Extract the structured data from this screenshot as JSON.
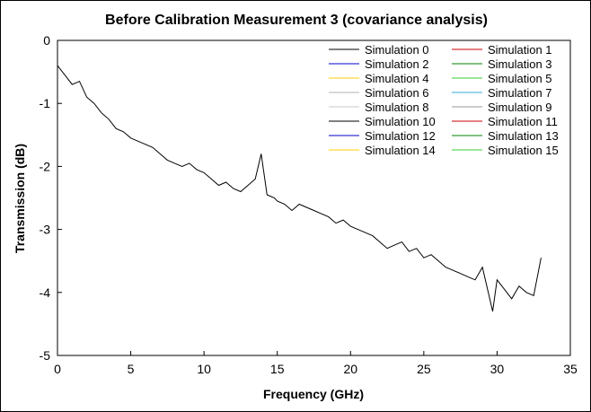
{
  "chart_data": {
    "type": "line",
    "title": "Before Calibration Measurement 3 (covariance analysis)",
    "xlabel": "Frequency (GHz)",
    "ylabel": "Transmission (dB)",
    "xlim": [
      0,
      35
    ],
    "ylim": [
      -5,
      0
    ],
    "xticks": [
      "0",
      "5",
      "10",
      "15",
      "20",
      "25",
      "30",
      "35"
    ],
    "yticks": [
      "0",
      "-1",
      "-2",
      "-3",
      "-4",
      "-5"
    ],
    "grid": false,
    "legend_position": "top-right",
    "series": [
      {
        "name": "Simulation 0",
        "color": "#000000",
        "x": [
          0,
          0.5,
          1,
          1.5,
          2,
          2.5,
          3,
          3.5,
          4,
          4.5,
          5,
          5.5,
          6,
          6.5,
          7,
          7.5,
          8,
          8.5,
          9,
          9.5,
          10,
          10.5,
          11,
          11.5,
          12,
          12.5,
          13,
          13.5,
          13.9,
          14.3,
          14.8,
          15,
          15.5,
          16,
          16.5,
          17,
          17.5,
          18,
          18.5,
          19,
          19.5,
          20,
          20.5,
          21,
          21.5,
          22,
          22.5,
          23,
          23.5,
          24,
          24.5,
          25,
          25.5,
          26,
          26.5,
          27,
          27.5,
          28,
          28.5,
          29,
          29.3,
          29.7,
          30,
          30.5,
          31,
          31.5,
          32,
          32.5,
          33
        ],
        "y": [
          -0.4,
          -0.55,
          -0.7,
          -0.65,
          -0.9,
          -1.0,
          -1.15,
          -1.25,
          -1.4,
          -1.45,
          -1.55,
          -1.6,
          -1.65,
          -1.7,
          -1.8,
          -1.9,
          -1.95,
          -2.0,
          -1.95,
          -2.05,
          -2.1,
          -2.2,
          -2.3,
          -2.25,
          -2.35,
          -2.4,
          -2.3,
          -2.2,
          -1.8,
          -2.45,
          -2.5,
          -2.55,
          -2.6,
          -2.7,
          -2.6,
          -2.65,
          -2.7,
          -2.75,
          -2.8,
          -2.9,
          -2.85,
          -2.95,
          -3.0,
          -3.05,
          -3.1,
          -3.2,
          -3.3,
          -3.25,
          -3.2,
          -3.35,
          -3.3,
          -3.45,
          -3.4,
          -3.5,
          -3.6,
          -3.65,
          -3.7,
          -3.75,
          -3.8,
          -3.6,
          -3.9,
          -4.3,
          -3.8,
          -3.95,
          -4.1,
          -3.9,
          -4.0,
          -4.05,
          -3.45
        ]
      },
      {
        "name": "Simulation 1",
        "color": "#cc0000",
        "x": [],
        "y": []
      },
      {
        "name": "Simulation 2",
        "color": "#0000cc",
        "x": [],
        "y": []
      },
      {
        "name": "Simulation 3",
        "color": "#008000",
        "x": [],
        "y": []
      },
      {
        "name": "Simulation 4",
        "color": "#ffcc00",
        "x": [],
        "y": []
      },
      {
        "name": "Simulation 5",
        "color": "#33cc33",
        "x": [],
        "y": []
      },
      {
        "name": "Simulation 6",
        "color": "#b0b0b0",
        "x": [],
        "y": []
      },
      {
        "name": "Simulation 7",
        "color": "#33aadd",
        "x": [],
        "y": []
      },
      {
        "name": "Simulation 8",
        "color": "#c8c8c8",
        "x": [],
        "y": []
      },
      {
        "name": "Simulation 9",
        "color": "#999999",
        "x": [],
        "y": []
      },
      {
        "name": "Simulation 10",
        "color": "#000000",
        "x": [],
        "y": []
      },
      {
        "name": "Simulation 11",
        "color": "#cc0000",
        "x": [],
        "y": []
      },
      {
        "name": "Simulation 12",
        "color": "#0000cc",
        "x": [],
        "y": []
      },
      {
        "name": "Simulation 13",
        "color": "#008000",
        "x": [],
        "y": []
      },
      {
        "name": "Simulation 14",
        "color": "#ffcc00",
        "x": [],
        "y": []
      },
      {
        "name": "Simulation 15",
        "color": "#33cc33",
        "x": [],
        "y": []
      }
    ]
  }
}
